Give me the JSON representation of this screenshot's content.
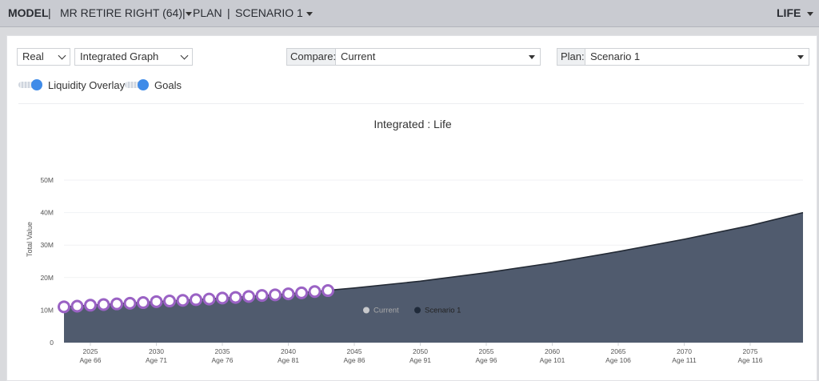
{
  "topbar": {
    "model": "MODEL",
    "sep1": "|",
    "client": "MR RETIRE RIGHT (64)",
    "sep2": "|",
    "plan": "PLAN",
    "sep3": "|",
    "scenario": "SCENARIO 1",
    "life": "LIFE"
  },
  "controls": {
    "value_mode": "Real",
    "graph_type": "Integrated Graph",
    "compare_label": "Compare:",
    "compare_value": "Current",
    "plan_label": "Plan:",
    "plan_value": "Scenario 1"
  },
  "toggles": {
    "liquidity": "Liquidity Overlay",
    "goals": "Goals"
  },
  "colors": {
    "area": "#505b6e",
    "line": "#232a35",
    "marker_stroke": "#9a62c4",
    "legend_current": "#c8c9cc",
    "legend_scenario": "#1f2a3a",
    "toggle_on": "#3f8be8"
  },
  "chart_data": {
    "type": "area",
    "title": "Integrated : Life",
    "ylabel": "Total Value",
    "xlabel": "",
    "ylim": [
      0,
      50000000
    ],
    "xlim": [
      2023,
      2079
    ],
    "yticks": [
      {
        "v": 0,
        "label": "0"
      },
      {
        "v": 10000000,
        "label": "10M"
      },
      {
        "v": 20000000,
        "label": "20M"
      },
      {
        "v": 30000000,
        "label": "30M"
      },
      {
        "v": 40000000,
        "label": "40M"
      },
      {
        "v": 50000000,
        "label": "50M"
      }
    ],
    "xticks": [
      {
        "year": 2025,
        "label": "2025",
        "age": "Age 66"
      },
      {
        "year": 2030,
        "label": "2030",
        "age": "Age 71"
      },
      {
        "year": 2035,
        "label": "2035",
        "age": "Age 76"
      },
      {
        "year": 2040,
        "label": "2040",
        "age": "Age 81"
      },
      {
        "year": 2045,
        "label": "2045",
        "age": "Age 86"
      },
      {
        "year": 2050,
        "label": "2050",
        "age": "Age 91"
      },
      {
        "year": 2055,
        "label": "2055",
        "age": "Age 96"
      },
      {
        "year": 2060,
        "label": "2060",
        "age": "Age 101"
      },
      {
        "year": 2065,
        "label": "2065",
        "age": "Age 106"
      },
      {
        "year": 2070,
        "label": "2070",
        "age": "Age 111"
      },
      {
        "year": 2075,
        "label": "2075",
        "age": "Age 116"
      }
    ],
    "series": [
      {
        "name": "Current",
        "visible": false,
        "years": [],
        "values": []
      },
      {
        "name": "Scenario 1",
        "visible": true,
        "years": [
          2023,
          2025,
          2030,
          2035,
          2040,
          2045,
          2050,
          2055,
          2060,
          2065,
          2070,
          2075,
          2079
        ],
        "values": [
          11000000,
          11500000,
          12600000,
          13700000,
          15000000,
          16800000,
          18900000,
          21500000,
          24500000,
          28000000,
          31800000,
          36000000,
          40000000
        ]
      }
    ],
    "goal_markers": {
      "years": [
        2023,
        2024,
        2025,
        2026,
        2027,
        2028,
        2029,
        2030,
        2031,
        2032,
        2033,
        2034,
        2035,
        2036,
        2037,
        2038,
        2039,
        2040,
        2041,
        2042,
        2043
      ],
      "values": [
        11000000,
        11200000,
        11500000,
        11700000,
        11900000,
        12100000,
        12300000,
        12600000,
        12800000,
        13000000,
        13200000,
        13400000,
        13700000,
        13900000,
        14200000,
        14500000,
        14700000,
        15000000,
        15300000,
        15700000,
        16000000
      ]
    },
    "legend": [
      {
        "name": "Current",
        "state": "inactive"
      },
      {
        "name": "Scenario 1",
        "state": "active"
      }
    ]
  }
}
